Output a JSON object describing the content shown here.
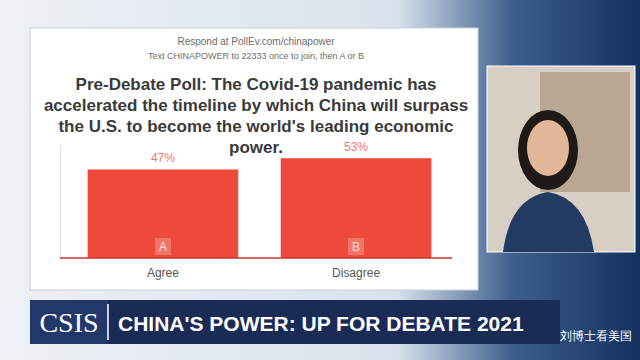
{
  "chart_data": {
    "type": "bar",
    "title": "Pre-Debate Poll: The Covid-19 pandemic has accelerated the timeline by which China will surpass the U.S. to become the world's leading economic power.",
    "categories": [
      "Agree",
      "Disagree"
    ],
    "values": [
      47,
      53
    ],
    "value_labels": [
      "47%",
      "53%"
    ],
    "annotations": [
      "A",
      "B"
    ],
    "color": "#ee4a3b",
    "ylim": [
      0,
      60
    ],
    "data_labels": true,
    "tick_labels": "x",
    "grid": false
  },
  "page": {
    "poll_prompt": "Respond at PollEv.com/chinapower",
    "poll_instruction": "Text CHINAPOWER to 22333 once to join, then A or B",
    "logo": "CSIS",
    "banner": "CHINA'S POWER: UP FOR DEBATE 2021",
    "watermark": "刘博士看美国"
  }
}
